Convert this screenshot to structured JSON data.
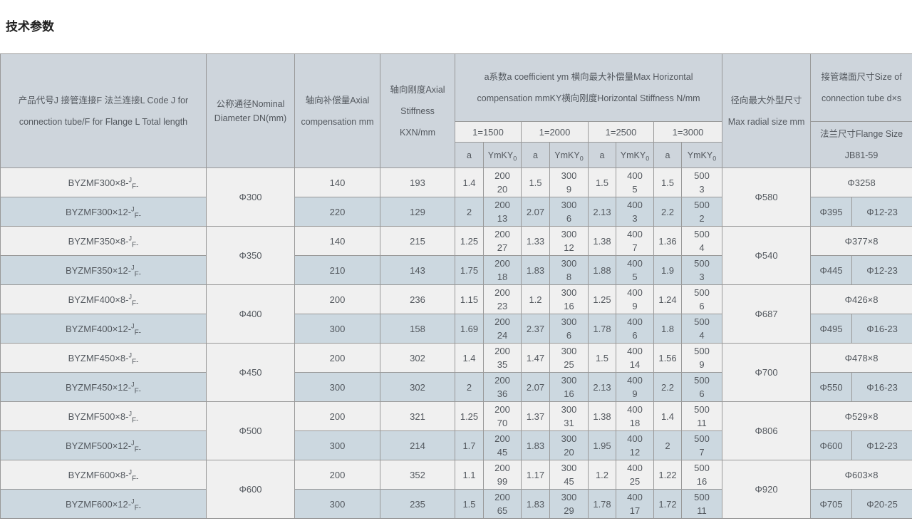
{
  "page": {
    "title": "技术参数"
  },
  "table": {
    "headers": {
      "product": "产品代号J 接管连接F 法兰连接L Code J for connection tube/F for Flange L Total length",
      "dn": "公称通径Nominal Diameter DN(mm)",
      "axial_comp": "轴向补偿量Axial compensation mm",
      "stiffness": "轴向刚度Axial Stiffness KXN/mm",
      "group": "a系数a coefficient ym 横向最大补偿量Max Horizontal compensation mmKY横向刚度Horizontal Stiffness N/mm",
      "lengths": [
        "1=1500",
        "1=2000",
        "1=2500",
        "1=3000"
      ],
      "sub_a": "a",
      "ym_base": "YmKY",
      "ym_sub": "0",
      "radial": "径向最大外型尺寸 Max radial size mm",
      "tube": "接管端面尺寸Size of connection tube d×s",
      "flange": "法兰尺寸Flange Size JB81-59"
    },
    "groups": [
      {
        "dn": "Φ300",
        "radial": "Φ580",
        "tube": "Φ3258",
        "flange": [
          "Φ395",
          "Φ12-23"
        ],
        "rows": [
          {
            "code_base": "BYZMF300×8-",
            "code_sup": "J",
            "code_sub": "F-",
            "axial_comp": "140",
            "stiffness": "193",
            "pairs": [
              [
                "1.4",
                "200",
                "20"
              ],
              [
                "1.5",
                "300",
                "9"
              ],
              [
                "1.5",
                "400",
                "5"
              ],
              [
                "1.5",
                "500",
                "3"
              ]
            ]
          },
          {
            "code_base": "BYZMF300×12-",
            "code_sup": "J",
            "code_sub": "F-",
            "axial_comp": "220",
            "stiffness": "129",
            "pairs": [
              [
                "2",
                "200",
                "13"
              ],
              [
                "2.07",
                "300",
                "6"
              ],
              [
                "2.13",
                "400",
                "3"
              ],
              [
                "2.2",
                "500",
                "2"
              ]
            ]
          }
        ]
      },
      {
        "dn": "Φ350",
        "radial": "Φ540",
        "tube": "Φ377×8",
        "flange": [
          "Φ445",
          "Φ12-23"
        ],
        "rows": [
          {
            "code_base": "BYZMF350×8-",
            "code_sup": "J",
            "code_sub": "F-",
            "axial_comp": "140",
            "stiffness": "215",
            "pairs": [
              [
                "1.25",
                "200",
                "27"
              ],
              [
                "1.33",
                "300",
                "12"
              ],
              [
                "1.38",
                "400",
                "7"
              ],
              [
                "1.36",
                "500",
                "4"
              ]
            ]
          },
          {
            "code_base": "BYZMF350×12-",
            "code_sup": "J",
            "code_sub": "F-",
            "axial_comp": "210",
            "stiffness": "143",
            "pairs": [
              [
                "1.75",
                "200",
                "18"
              ],
              [
                "1.83",
                "300",
                "8"
              ],
              [
                "1.88",
                "400",
                "5"
              ],
              [
                "1.9",
                "500",
                "3"
              ]
            ]
          }
        ]
      },
      {
        "dn": "Φ400",
        "radial": "Φ687",
        "tube": "Φ426×8",
        "flange": [
          "Φ495",
          "Φ16-23"
        ],
        "rows": [
          {
            "code_base": "BYZMF400×8-",
            "code_sup": "J",
            "code_sub": "F-",
            "axial_comp": "200",
            "stiffness": "236",
            "pairs": [
              [
                "1.15",
                "200",
                "23"
              ],
              [
                "1.2",
                "300",
                "16"
              ],
              [
                "1.25",
                "400",
                "9"
              ],
              [
                "1.24",
                "500",
                "6"
              ]
            ]
          },
          {
            "code_base": "BYZMF400×12-",
            "code_sup": "J",
            "code_sub": "F-",
            "axial_comp": "300",
            "stiffness": "158",
            "pairs": [
              [
                "1.69",
                "200",
                "24"
              ],
              [
                "2.37",
                "300",
                "6"
              ],
              [
                "1.78",
                "400",
                "6"
              ],
              [
                "1.8",
                "500",
                "4"
              ]
            ]
          }
        ]
      },
      {
        "dn": "Φ450",
        "radial": "Φ700",
        "tube": "Φ478×8",
        "flange": [
          "Φ550",
          "Φ16-23"
        ],
        "rows": [
          {
            "code_base": "BYZMF450×8-",
            "code_sup": "J",
            "code_sub": "F-",
            "axial_comp": "200",
            "stiffness": "302",
            "pairs": [
              [
                "1.4",
                "200",
                "35"
              ],
              [
                "1.47",
                "300",
                "25"
              ],
              [
                "1.5",
                "400",
                "14"
              ],
              [
                "1.56",
                "500",
                "9"
              ]
            ]
          },
          {
            "code_base": "BYZMF450×12-",
            "code_sup": "J",
            "code_sub": "F-",
            "axial_comp": "300",
            "stiffness": "302",
            "pairs": [
              [
                "2",
                "200",
                "36"
              ],
              [
                "2.07",
                "300",
                "16"
              ],
              [
                "2.13",
                "400",
                "9"
              ],
              [
                "2.2",
                "500",
                "6"
              ]
            ]
          }
        ]
      },
      {
        "dn": "Φ500",
        "radial": "Φ806",
        "tube": "Φ529×8",
        "flange": [
          "Φ600",
          "Φ12-23"
        ],
        "rows": [
          {
            "code_base": "BYZMF500×8-",
            "code_sup": "J",
            "code_sub": "F-",
            "axial_comp": "200",
            "stiffness": "321",
            "pairs": [
              [
                "1.25",
                "200",
                "70"
              ],
              [
                "1.37",
                "300",
                "31"
              ],
              [
                "1.38",
                "400",
                "18"
              ],
              [
                "1.4",
                "500",
                "11"
              ]
            ]
          },
          {
            "code_base": "BYZMF500×12-",
            "code_sup": "J",
            "code_sub": "F-",
            "axial_comp": "300",
            "stiffness": "214",
            "pairs": [
              [
                "1.7",
                "200",
                "45"
              ],
              [
                "1.83",
                "300",
                "20"
              ],
              [
                "1.95",
                "400",
                "12"
              ],
              [
                "2",
                "500",
                "7"
              ]
            ]
          }
        ]
      },
      {
        "dn": "Φ600",
        "radial": "Φ920",
        "tube": "Φ603×8",
        "flange": [
          "Φ705",
          "Φ20-25"
        ],
        "rows": [
          {
            "code_base": "BYZMF600×8-",
            "code_sup": "J",
            "code_sub": "F-",
            "axial_comp": "200",
            "stiffness": "352",
            "pairs": [
              [
                "1.1",
                "200",
                "99"
              ],
              [
                "1.17",
                "300",
                "45"
              ],
              [
                "1.2",
                "400",
                "25"
              ],
              [
                "1.22",
                "500",
                "16"
              ]
            ]
          },
          {
            "code_base": "BYZMF600×12-",
            "code_sup": "J",
            "code_sub": "F-",
            "axial_comp": "300",
            "stiffness": "235",
            "pairs": [
              [
                "1.5",
                "200",
                "65"
              ],
              [
                "1.83",
                "300",
                "29"
              ],
              [
                "1.78",
                "400",
                "17"
              ],
              [
                "1.72",
                "500",
                "11"
              ]
            ]
          }
        ]
      }
    ],
    "colors": {
      "header_bg": "#ced5dc",
      "row_light_bg": "#f0f0f0",
      "row_blue_bg": "#ccd8e0",
      "length_cell_bg": "#efefef",
      "border": "#999999",
      "text": "#53585e"
    }
  }
}
